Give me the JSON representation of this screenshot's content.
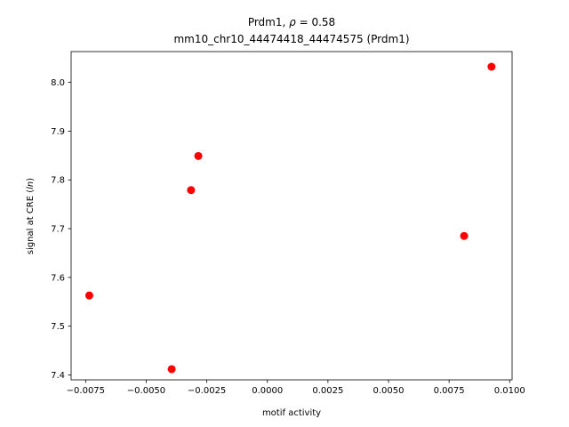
{
  "chart_data": {
    "type": "scatter",
    "title_line1_prefix": "Prdm1, ",
    "title_line1_symbol": "ρ",
    "title_line1_value": " = 0.58",
    "title_line2": "mm10_chr10_44474418_44474575 (Prdm1)",
    "xlabel": "motif activity",
    "ylabel_prefix": "signal at CRE (",
    "ylabel_italic": "ln",
    "ylabel_suffix": ")",
    "xlim": [
      -0.0081,
      0.0101
    ],
    "ylim": [
      7.39,
      8.063
    ],
    "x_ticks": [
      -0.0075,
      -0.005,
      -0.0025,
      0.0,
      0.0025,
      0.005,
      0.0075,
      0.01
    ],
    "x_tick_labels": [
      "−0.0075",
      "−0.0050",
      "−0.0025",
      "0.0000",
      "0.0025",
      "0.0050",
      "0.0075",
      "0.0100"
    ],
    "y_ticks": [
      7.4,
      7.5,
      7.6,
      7.7,
      7.8,
      7.9,
      8.0
    ],
    "y_tick_labels": [
      "7.4",
      "7.5",
      "7.6",
      "7.7",
      "7.8",
      "7.9",
      "8.0"
    ],
    "grid": false,
    "marker_color": "#ff0000",
    "points": [
      {
        "x": -0.00735,
        "y": 7.563
      },
      {
        "x": -0.00395,
        "y": 7.412
      },
      {
        "x": -0.00315,
        "y": 7.779
      },
      {
        "x": -0.00285,
        "y": 7.849
      },
      {
        "x": 0.00812,
        "y": 7.685
      },
      {
        "x": 0.00925,
        "y": 8.032
      }
    ]
  }
}
